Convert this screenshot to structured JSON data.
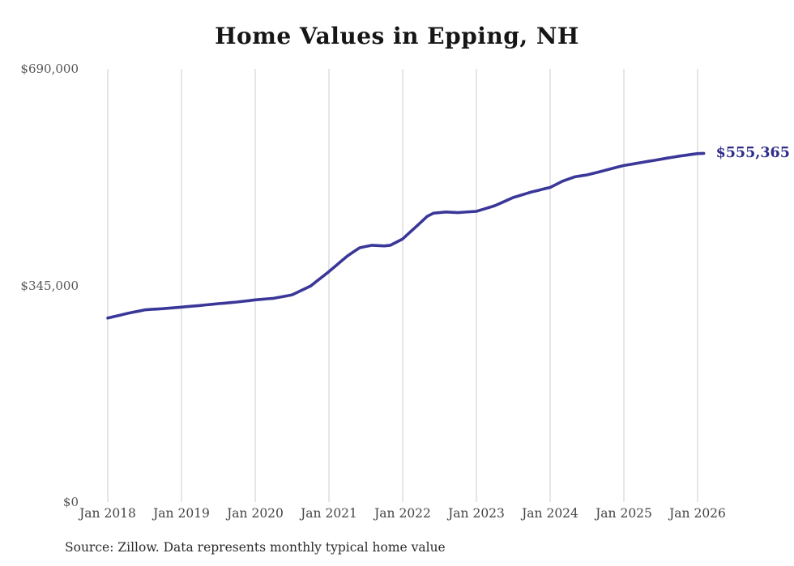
{
  "page": {
    "background_color": "#ffffff",
    "title": "Home Values in Epping, NH",
    "source_note": "Source: Zillow. Data represents monthly typical home value"
  },
  "chart_data": {
    "type": "line",
    "title": "Home Values in Epping, NH",
    "xlabel": "",
    "ylabel": "",
    "ylim": [
      0,
      690000
    ],
    "grid": "vertical-only",
    "grid_color": "#cccccc",
    "line_color": "#3a3799",
    "end_label": "$555,365",
    "end_label_color": "#2e2c8a",
    "legend": "none",
    "y_ticks": [
      {
        "value": 0,
        "label": "$0"
      },
      {
        "value": 345000,
        "label": "$345,000"
      },
      {
        "value": 690000,
        "label": "$690,000"
      }
    ],
    "x_ticks": [
      "Jan 2018",
      "Jan 2019",
      "Jan 2020",
      "Jan 2021",
      "Jan 2022",
      "Jan 2023",
      "Jan 2024",
      "Jan 2025",
      "Jan 2026"
    ],
    "series": [
      {
        "name": "Typical home value",
        "months": [
          "2018-01",
          "2018-02",
          "2018-03",
          "2018-04",
          "2018-05",
          "2018-06",
          "2018-07",
          "2018-08",
          "2018-09",
          "2018-10",
          "2018-11",
          "2018-12",
          "2019-01",
          "2019-02",
          "2019-03",
          "2019-04",
          "2019-05",
          "2019-06",
          "2019-07",
          "2019-08",
          "2019-09",
          "2019-10",
          "2019-11",
          "2019-12",
          "2020-01",
          "2020-02",
          "2020-03",
          "2020-04",
          "2020-05",
          "2020-06",
          "2020-07",
          "2020-08",
          "2020-09",
          "2020-10",
          "2020-11",
          "2020-12",
          "2021-01",
          "2021-02",
          "2021-03",
          "2021-04",
          "2021-05",
          "2021-06",
          "2021-07",
          "2021-08",
          "2021-09",
          "2021-10",
          "2021-11",
          "2021-12",
          "2022-01",
          "2022-02",
          "2022-03",
          "2022-04",
          "2022-05",
          "2022-06",
          "2022-07",
          "2022-08",
          "2022-09",
          "2022-10",
          "2022-11",
          "2022-12",
          "2023-01",
          "2023-02",
          "2023-03",
          "2023-04",
          "2023-05",
          "2023-06",
          "2023-07",
          "2023-08",
          "2023-09",
          "2023-10",
          "2023-11",
          "2023-12",
          "2024-01",
          "2024-02",
          "2024-03",
          "2024-04",
          "2024-05",
          "2024-06",
          "2024-07",
          "2024-08",
          "2024-09",
          "2024-10",
          "2024-11",
          "2024-12",
          "2025-01",
          "2025-02",
          "2025-03",
          "2025-04",
          "2025-05",
          "2025-06",
          "2025-07",
          "2025-08",
          "2025-09",
          "2025-10",
          "2025-11",
          "2025-12",
          "2026-01",
          "2026-02"
        ],
        "values": [
          293000,
          295300,
          297700,
          300000,
          302000,
          304000,
          306000,
          306800,
          307400,
          308000,
          308800,
          309700,
          310500,
          311300,
          312200,
          313000,
          314000,
          315000,
          316000,
          316800,
          317700,
          318500,
          319700,
          320800,
          322000,
          322800,
          323700,
          324500,
          326300,
          328100,
          330000,
          334700,
          339300,
          344000,
          351700,
          359300,
          367000,
          375300,
          383700,
          392000,
          398500,
          405000,
          407000,
          409000,
          408500,
          408000,
          409000,
          414000,
          419000,
          428000,
          437000,
          446000,
          455000,
          460000,
          461000,
          462000,
          461500,
          461000,
          461700,
          462300,
          463000,
          466000,
          469000,
          472000,
          476300,
          480700,
          485000,
          488000,
          491000,
          494000,
          496300,
          498700,
          501000,
          506000,
          511000,
          514500,
          518000,
          519500,
          521000,
          523500,
          526000,
          528500,
          531000,
          533500,
          536000,
          537700,
          539300,
          541000,
          542700,
          544300,
          546000,
          547700,
          549300,
          551000,
          552300,
          553700,
          555000,
          555365
        ]
      }
    ]
  }
}
